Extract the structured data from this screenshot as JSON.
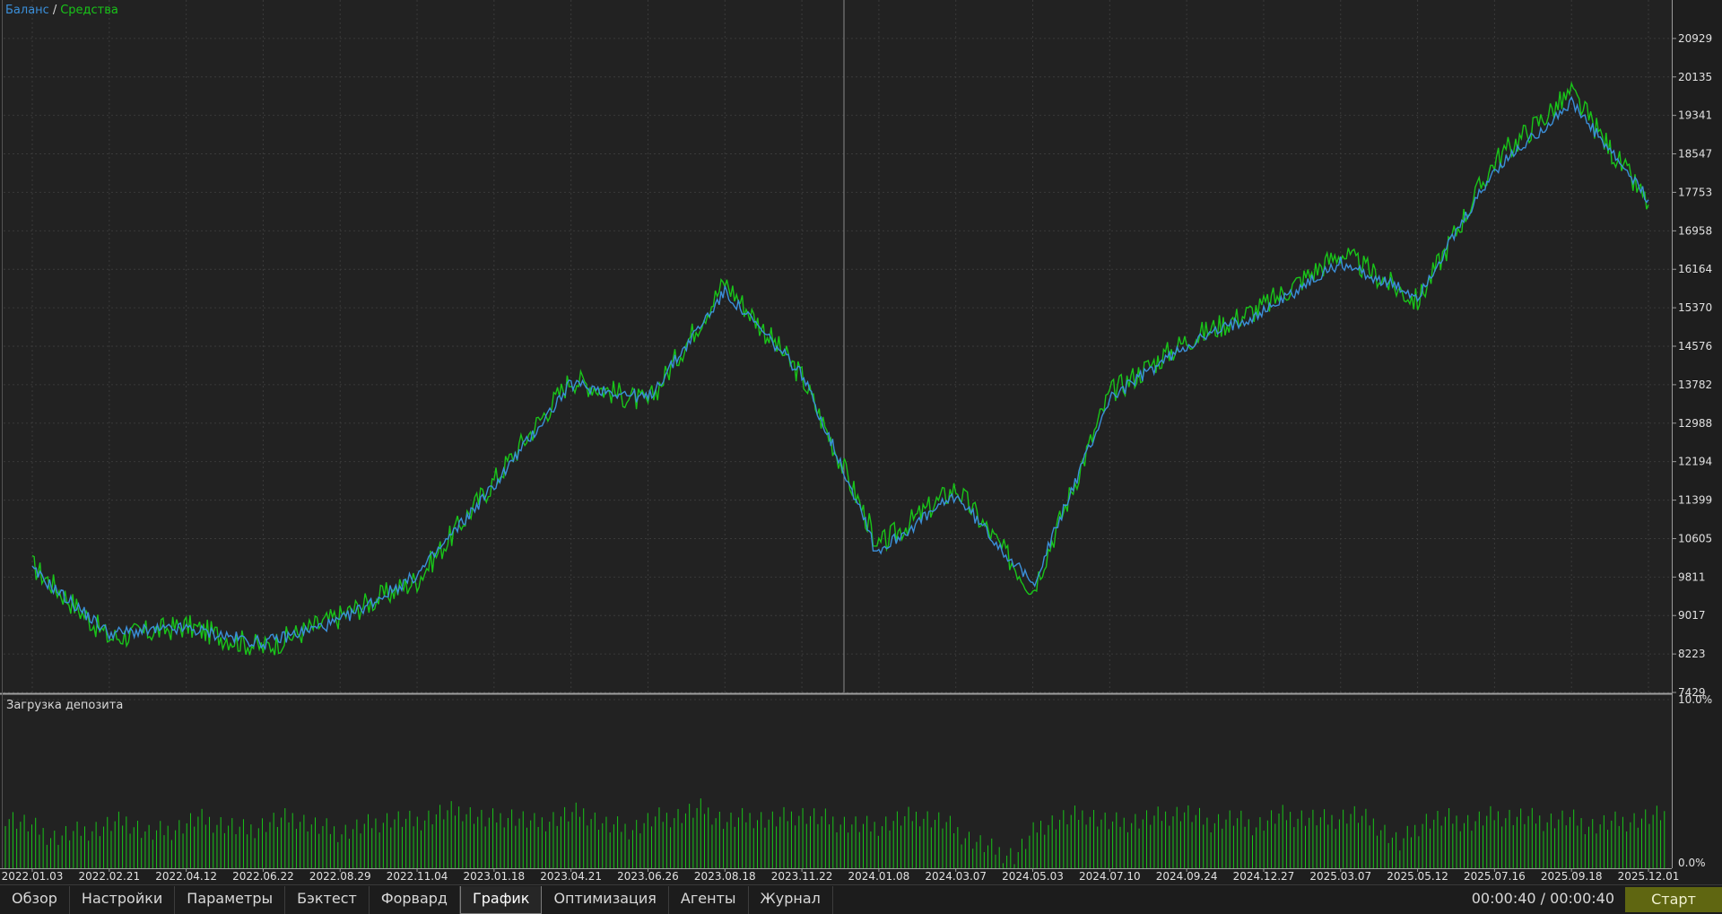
{
  "chart_data": [
    {
      "type": "line",
      "legend_placement": "top-left",
      "legend": [
        {
          "label": "Баланс",
          "color": "#3b8fd9"
        },
        {
          "label": "Средства",
          "color": "#19c419"
        }
      ],
      "legend_separator": "/",
      "ylim": [
        7429,
        21723
      ],
      "y_ticks": [
        "20929",
        "20135",
        "19341",
        "18547",
        "17753",
        "16958",
        "16164",
        "15370",
        "14576",
        "13782",
        "12988",
        "12194",
        "11399",
        "10605",
        "9811",
        "9017",
        "8223",
        "7429"
      ],
      "grid": true,
      "x_ticks": [
        "2022.01.03",
        "2022.02.21",
        "2022.04.12",
        "2022.06.22",
        "2022.08.29",
        "2022.11.04",
        "2023.01.18",
        "2023.04.21",
        "2023.06.26",
        "2023.08.18",
        "2023.11.22",
        "2024.01.08",
        "2024.03.07",
        "2024.05.03",
        "2024.07.10",
        "2024.09.24",
        "2024.12.27",
        "2025.03.07",
        "2025.05.12",
        "2025.07.16",
        "2025.09.18",
        "2025.12.01"
      ],
      "series": [
        {
          "name": "Баланс",
          "color": "#3b8fd9",
          "x": [
            "2022.01.03",
            "2022.02.21",
            "2022.04.12",
            "2022.06.22",
            "2022.08.29",
            "2022.11.04",
            "2023.01.18",
            "2023.04.21",
            "2023.06.26",
            "2023.08.18",
            "2023.11.22",
            "2024.01.08",
            "2024.03.07",
            "2024.05.03",
            "2024.07.10",
            "2024.09.24",
            "2024.12.27",
            "2025.03.07",
            "2025.05.12",
            "2025.07.16",
            "2025.09.18",
            "2025.12.01"
          ],
          "values": [
            9950,
            8650,
            8750,
            8450,
            8900,
            9850,
            11700,
            13800,
            13500,
            15700,
            14000,
            10350,
            11500,
            9650,
            13500,
            14600,
            15300,
            16300,
            15600,
            18200,
            19600,
            17600
          ]
        },
        {
          "name": "Средства",
          "color": "#19c419",
          "x": [
            "2022.01.03",
            "2022.02.21",
            "2022.04.12",
            "2022.06.22",
            "2022.08.29",
            "2022.11.04",
            "2023.01.18",
            "2023.04.21",
            "2023.06.26",
            "2023.08.18",
            "2023.11.22",
            "2024.01.08",
            "2024.03.07",
            "2024.05.03",
            "2024.07.10",
            "2024.09.24",
            "2024.12.27",
            "2025.03.07",
            "2025.05.12",
            "2025.07.16",
            "2025.09.18",
            "2025.12.01"
          ],
          "values": [
            10050,
            8550,
            8800,
            8350,
            9000,
            9750,
            11800,
            13900,
            13400,
            15900,
            13950,
            10450,
            11650,
            9550,
            13600,
            14700,
            15400,
            16500,
            15500,
            18400,
            19800,
            17500
          ]
        }
      ]
    },
    {
      "type": "bar",
      "title": "Загрузка депозита",
      "ylim": [
        0,
        10
      ],
      "y_ticks": [
        "10.0%",
        "0.0%"
      ],
      "color": "#19c419",
      "series": [
        {
          "values": [
            3.2,
            2.6,
            1.9,
            2.2,
            2.5,
            2.9,
            2.1,
            2.4,
            3.0,
            2.7,
            2.3,
            2.8,
            3.1,
            2.5,
            2.2,
            2.6,
            3.0,
            2.8,
            3.3,
            3.5,
            2.9,
            3.2,
            2.7,
            3.1,
            3.4,
            2.6,
            2.4,
            3.0,
            3.2,
            3.6,
            2.8,
            3.1,
            2.9,
            3.3,
            3.0,
            2.7,
            2.5,
            2.9,
            3.2,
            2.8,
            1.9,
            1.2,
            0.8,
            2.6,
            3.0,
            3.3,
            2.7,
            2.9,
            3.1,
            3.4,
            2.8,
            3.0,
            2.6,
            3.2,
            3.1,
            2.9,
            3.3,
            2.7,
            1.5,
            2.9,
            3.0,
            2.8,
            3.2,
            3.1,
            2.9,
            3.0,
            2.6,
            2.8,
            3.0,
            3.2
          ]
        }
      ]
    }
  ],
  "tabs": [
    "Обзор",
    "Настройки",
    "Параметры",
    "Бэктест",
    "Форвард",
    "График",
    "Оптимизация",
    "Агенты",
    "Журнал"
  ],
  "active_tab": "График",
  "timer": "00:00:40 / 00:00:40",
  "start_label": "Старт"
}
